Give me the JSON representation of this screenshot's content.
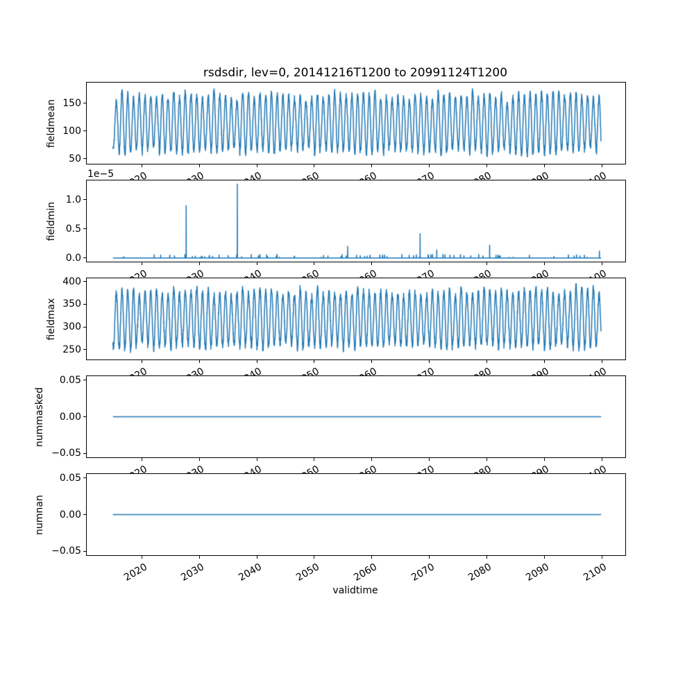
{
  "figure": {
    "title": "rsdsdir, lev=0, 20141216T1200 to 20991124T1200",
    "xlabel": "validtime",
    "background_color": "#ffffff",
    "line_color": "#1f77b4",
    "spine_color": "#000000"
  },
  "chart_data": {
    "type": "line",
    "title": "rsdsdir, lev=0, 20141216T1200 to 20991124T1200",
    "xlabel": "validtime",
    "grid": false,
    "legend": null,
    "x_start": 2014.956,
    "x_end": 2099.896,
    "xlim": [
      2010.4,
      2104.1
    ],
    "xticks": [
      2020,
      2030,
      2040,
      2050,
      2060,
      2070,
      2080,
      2090,
      2100
    ],
    "xtick_labels": [
      "2020",
      "2030",
      "2040",
      "2050",
      "2060",
      "2070",
      "2080",
      "2090",
      "2100"
    ],
    "subplots": [
      {
        "ylabel": "fieldmean",
        "ylim": [
          41,
          187.5
        ],
        "yticks": [
          {
            "v": 150,
            "label": "150"
          },
          {
            "v": 100,
            "label": "100"
          },
          {
            "v": 50,
            "label": "50"
          }
        ],
        "series": {
          "kind": "seasonal",
          "description": "annual oscillation, troughs ~50-65, peaks ~150-180",
          "samples_per_year": 36,
          "base": 114,
          "base_jitter": 3,
          "amp": 48,
          "amp_jitter": 8,
          "noise": 6,
          "peak_frac": 0.54,
          "seed": 101
        }
      },
      {
        "ylabel": "fieldmin",
        "offset_text": "1e−5",
        "unit_scale": 1e-05,
        "ylim": [
          -0.0635,
          1.3335
        ],
        "yticks": [
          {
            "v": 1.0,
            "label": "1.0"
          },
          {
            "v": 0.5,
            "label": "0.5"
          },
          {
            "v": 0.0,
            "label": "0.0"
          }
        ],
        "series": {
          "kind": "spikes",
          "description": "baseline 0 with isolated spikes (values in 1e-5 units)",
          "baseline": 0,
          "major_spikes": [
            [
              2027.7,
              0.9
            ],
            [
              2036.6,
              1.27
            ],
            [
              2040.3,
              0.04
            ],
            [
              2041.7,
              0.055
            ],
            [
              2043.5,
              0.065
            ],
            [
              2055.8,
              0.2
            ],
            [
              2068.4,
              0.42
            ],
            [
              2071.3,
              0.14
            ],
            [
              2073.6,
              0.05
            ],
            [
              2080.5,
              0.22
            ],
            [
              2099.6,
              0.12
            ]
          ],
          "minor_spike_count": 80,
          "minor_spike_max": 0.06,
          "seed": 7
        }
      },
      {
        "ylabel": "fieldmax",
        "ylim": [
          228,
          407.5
        ],
        "yticks": [
          {
            "v": 400,
            "label": "400"
          },
          {
            "v": 350,
            "label": "350"
          },
          {
            "v": 300,
            "label": "300"
          },
          {
            "v": 250,
            "label": "250"
          }
        ],
        "series": {
          "kind": "seasonal",
          "description": "annual oscillation, troughs ~240-270, peaks ~375-398",
          "samples_per_year": 36,
          "base": 318,
          "base_jitter": 4,
          "amp": 60,
          "amp_jitter": 8,
          "noise": 8,
          "peak_frac": 0.54,
          "seed": 202
        }
      },
      {
        "ylabel": "nummasked",
        "ylim": [
          -0.0555,
          0.0555
        ],
        "yticks": [
          {
            "v": 0.05,
            "label": "0.05"
          },
          {
            "v": 0.0,
            "label": "0.00"
          },
          {
            "v": -0.05,
            "label": "−0.05"
          }
        ],
        "series": {
          "kind": "constant",
          "value": 0
        }
      },
      {
        "ylabel": "numnan",
        "ylim": [
          -0.0555,
          0.0555
        ],
        "yticks": [
          {
            "v": 0.05,
            "label": "0.05"
          },
          {
            "v": 0.0,
            "label": "0.00"
          },
          {
            "v": -0.05,
            "label": "−0.05"
          }
        ],
        "series": {
          "kind": "constant",
          "value": 0
        }
      }
    ]
  }
}
